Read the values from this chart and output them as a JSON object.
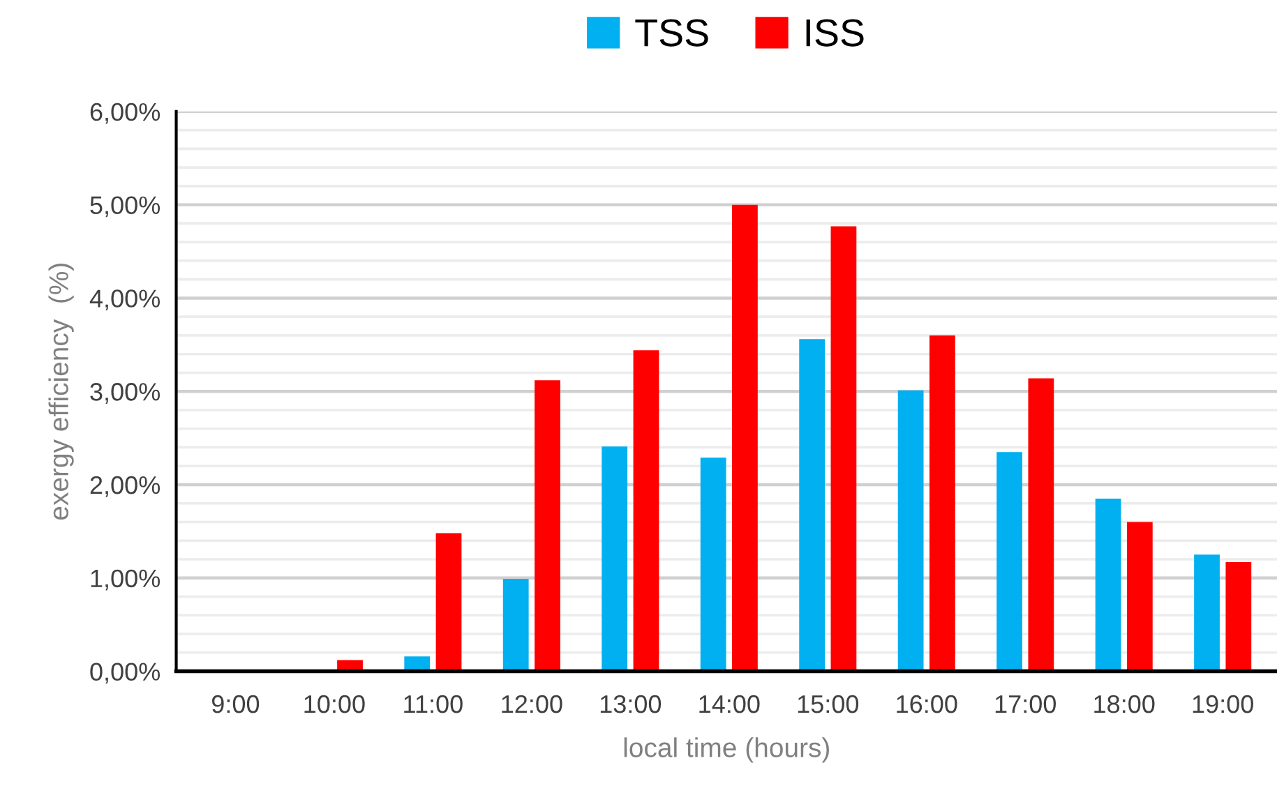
{
  "chart_data": {
    "type": "bar",
    "categories": [
      "9:00",
      "10:00",
      "11:00",
      "12:00",
      "13:00",
      "14:00",
      "15:00",
      "16:00",
      "17:00",
      "18:00",
      "19:00"
    ],
    "series": [
      {
        "name": "TSS",
        "color": "#00b0f0",
        "values": [
          0,
          0,
          0.16,
          0.99,
          2.41,
          2.29,
          3.56,
          3.01,
          2.35,
          1.85,
          1.25
        ]
      },
      {
        "name": "ISS",
        "color": "#ff0000",
        "values": [
          0,
          0.12,
          1.48,
          3.12,
          3.44,
          5.0,
          4.77,
          3.6,
          3.14,
          1.6,
          1.17
        ]
      }
    ],
    "xlabel": "local time (hours)",
    "ylabel": "exergy efficiency  (%)",
    "ylim": [
      0,
      6
    ],
    "yticks": [
      {
        "value": 0,
        "label": "0,00%"
      },
      {
        "value": 0.2,
        "label": null
      },
      {
        "value": 0.4,
        "label": null
      },
      {
        "value": 0.6,
        "label": null
      },
      {
        "value": 0.8,
        "label": null
      },
      {
        "value": 1,
        "label": "1,00%"
      },
      {
        "value": 1.2,
        "label": null
      },
      {
        "value": 1.4,
        "label": null
      },
      {
        "value": 1.6,
        "label": null
      },
      {
        "value": 1.8,
        "label": null
      },
      {
        "value": 2,
        "label": "2,00%"
      },
      {
        "value": 2.2,
        "label": null
      },
      {
        "value": 2.4,
        "label": null
      },
      {
        "value": 2.6,
        "label": null
      },
      {
        "value": 2.8,
        "label": null
      },
      {
        "value": 3,
        "label": "3,00%"
      },
      {
        "value": 3.2,
        "label": null
      },
      {
        "value": 3.4,
        "label": null
      },
      {
        "value": 3.6,
        "label": null
      },
      {
        "value": 3.8,
        "label": null
      },
      {
        "value": 4,
        "label": "4,00%"
      },
      {
        "value": 4.2,
        "label": null
      },
      {
        "value": 4.4,
        "label": null
      },
      {
        "value": 4.6,
        "label": null
      },
      {
        "value": 4.8,
        "label": null
      },
      {
        "value": 5,
        "label": "5,00%"
      },
      {
        "value": 5.2,
        "label": null
      },
      {
        "value": 5.4,
        "label": null
      },
      {
        "value": 5.6,
        "label": null
      },
      {
        "value": 5.8,
        "label": null
      },
      {
        "value": 6,
        "label": "6,00%"
      }
    ],
    "grid": "y",
    "legend": "top"
  }
}
